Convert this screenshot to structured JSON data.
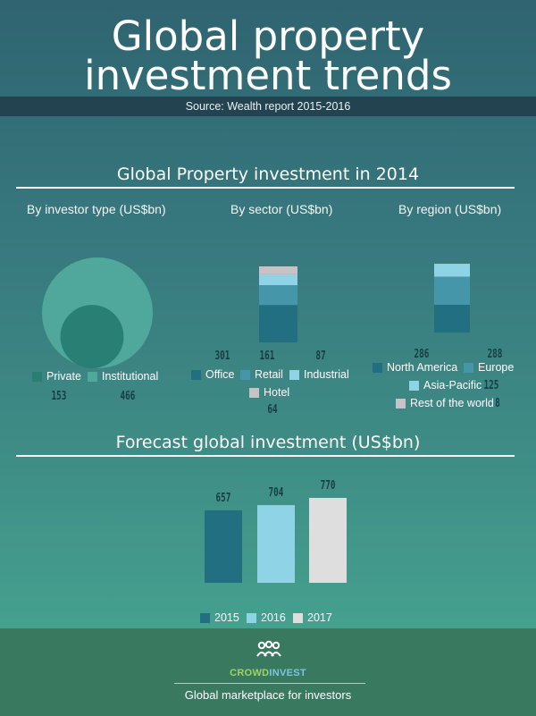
{
  "header": {
    "title_line1": "Global property",
    "title_line2": "investment trends",
    "source": "Source: Wealth report 2015-2016"
  },
  "section1": {
    "title": "Global Property investment in 2014",
    "investor_type": {
      "label": "By investor type (US$bn)",
      "legend": [
        {
          "name": "Private",
          "value": "153",
          "color": "#2a7f74"
        },
        {
          "name": "Institutional",
          "value": "466",
          "color": "#4fa89b"
        }
      ]
    },
    "sector": {
      "label": "By sector (US$bn)",
      "legend": [
        {
          "name": "Office",
          "value": "301",
          "color": "#216f80"
        },
        {
          "name": "Retail",
          "value": "161",
          "color": "#4596a8"
        },
        {
          "name": "Industrial",
          "value": "87",
          "color": "#8fd3e6"
        },
        {
          "name": "Hotel",
          "value": "64",
          "color": "#c4c4c4"
        }
      ]
    },
    "region": {
      "label": "By region (US$bn)",
      "legend": [
        {
          "name": "North America",
          "value": "286",
          "color": "#216f80"
        },
        {
          "name": "Europe",
          "value": "288",
          "color": "#4596a8"
        },
        {
          "name": "Asia-Pacific",
          "value": "125",
          "color": "#8fd3e6"
        },
        {
          "name": "Rest of the world",
          "value": "8",
          "color": "#c4c4c4"
        }
      ]
    }
  },
  "section2": {
    "title": "Forecast global investment (US$bn)"
  },
  "chart_data": [
    {
      "type": "pie",
      "title": "By investor type (US$bn)",
      "categories": [
        "Private",
        "Institutional"
      ],
      "values": [
        153,
        466
      ]
    },
    {
      "type": "bar",
      "title": "By sector (US$bn)",
      "stacked": true,
      "categories": [
        "Office",
        "Retail",
        "Industrial",
        "Hotel"
      ],
      "values": [
        301,
        161,
        87,
        64
      ]
    },
    {
      "type": "bar",
      "title": "By region (US$bn)",
      "stacked": true,
      "categories": [
        "North America",
        "Europe",
        "Asia-Pacific",
        "Rest of the world"
      ],
      "values": [
        286,
        288,
        125,
        8
      ]
    },
    {
      "type": "bar",
      "title": "Forecast global investment (US$bn)",
      "categories": [
        "2015",
        "2016",
        "2017"
      ],
      "values": [
        657,
        704,
        770
      ],
      "colors": [
        "#216f80",
        "#8fd3e6",
        "#dedede"
      ],
      "ylim": [
        0,
        770
      ]
    }
  ],
  "footer": {
    "brand_part1": "CROWD",
    "brand_part2": "INVEST",
    "brand_color1": "#9ed36a",
    "brand_color2": "#7fc4e0",
    "tagline": "Global marketplace for investors"
  }
}
